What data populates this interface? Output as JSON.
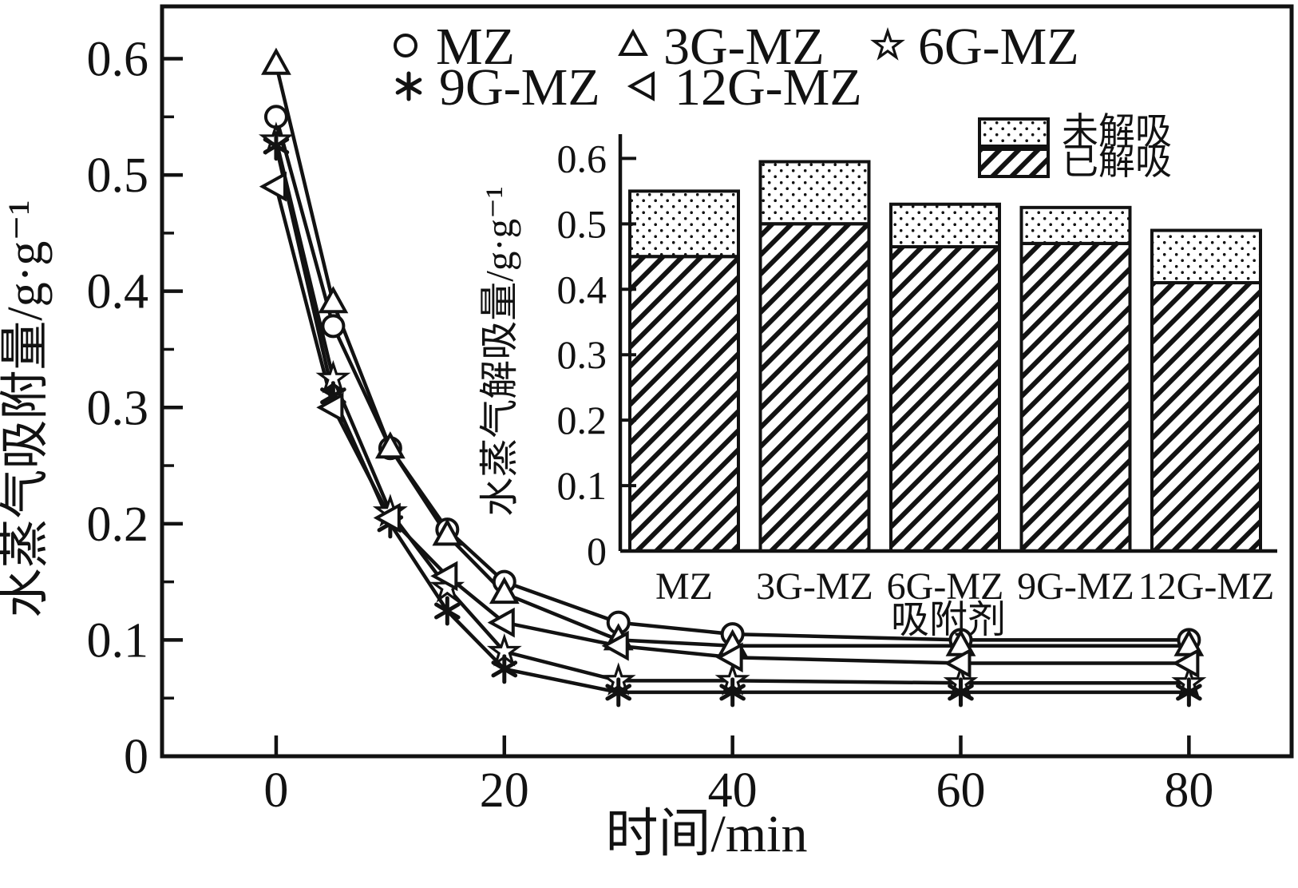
{
  "colors": {
    "ink": "#121212",
    "background": "#ffffff"
  },
  "chart_data": [
    {
      "id": "main",
      "type": "line",
      "xlabel": "时间/min",
      "ylabel": "水蒸气吸附量/g·g⁻¹",
      "x": [
        0,
        5,
        10,
        15,
        20,
        30,
        40,
        60,
        80
      ],
      "series": [
        {
          "name": "MZ",
          "marker": "circle",
          "values": [
            0.55,
            0.37,
            0.265,
            0.195,
            0.15,
            0.115,
            0.105,
            0.1,
            0.1
          ]
        },
        {
          "name": "3G-MZ",
          "marker": "triangle-up",
          "values": [
            0.595,
            0.39,
            0.265,
            0.19,
            0.14,
            0.1,
            0.095,
            0.095,
            0.095
          ]
        },
        {
          "name": "6G-MZ",
          "marker": "star",
          "values": [
            0.53,
            0.325,
            0.21,
            0.145,
            0.09,
            0.065,
            0.065,
            0.063,
            0.063
          ]
        },
        {
          "name": "9G-MZ",
          "marker": "asterisk",
          "values": [
            0.525,
            0.31,
            0.2,
            0.125,
            0.075,
            0.055,
            0.055,
            0.055,
            0.055
          ]
        },
        {
          "name": "12G-MZ",
          "marker": "triangle-left",
          "values": [
            0.49,
            0.3,
            0.205,
            0.155,
            0.115,
            0.095,
            0.085,
            0.08,
            0.08
          ]
        }
      ],
      "xlim": [
        -10,
        89
      ],
      "ylim": [
        0,
        0.645
      ],
      "xticks": [
        0,
        20,
        40,
        60,
        80
      ],
      "yticks": [
        0,
        0.1,
        0.2,
        0.3,
        0.4,
        0.5,
        0.6
      ],
      "y_minor_step": 0.05,
      "grid": false,
      "legend_position": "top-inside"
    },
    {
      "id": "inset",
      "type": "bar",
      "stacked": true,
      "xlabel": "吸附剂",
      "ylabel": "水蒸气解吸量/g·g⁻¹",
      "categories": [
        "MZ",
        "3G-MZ",
        "6G-MZ",
        "9G-MZ",
        "12G-MZ"
      ],
      "series": [
        {
          "name": "已解吸",
          "pattern": "diagonal-hatch",
          "values": [
            0.45,
            0.5,
            0.465,
            0.47,
            0.41
          ]
        },
        {
          "name": "未解吸",
          "pattern": "dots",
          "values": [
            0.1,
            0.095,
            0.065,
            0.055,
            0.08
          ]
        }
      ],
      "totals": [
        0.55,
        0.595,
        0.53,
        0.525,
        0.49
      ],
      "ylim": [
        0,
        0.62
      ],
      "yticks": [
        0,
        0.1,
        0.2,
        0.3,
        0.4,
        0.5,
        0.6
      ],
      "grid": false,
      "legend_position": "top-right"
    }
  ]
}
